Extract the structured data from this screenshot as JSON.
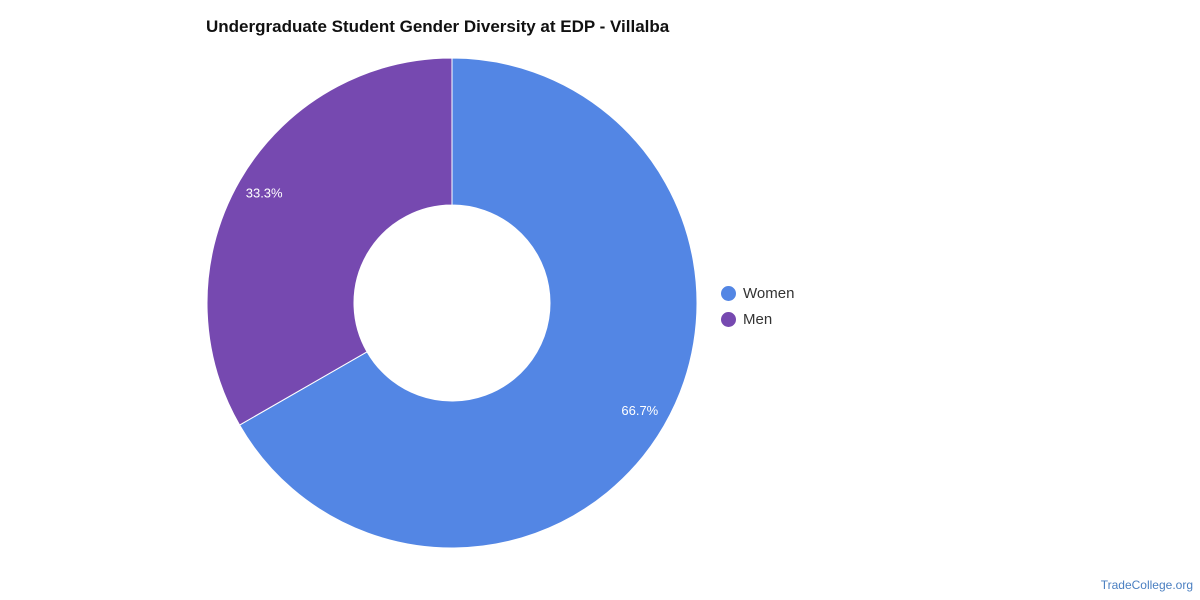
{
  "chart_data": {
    "type": "pie",
    "title": "Undergraduate Student Gender Diversity at EDP - Villalba",
    "categories": [
      "Women",
      "Men"
    ],
    "values": [
      66.7,
      33.3
    ],
    "labels": [
      "66.7%",
      "33.3%"
    ],
    "colors": [
      "#5386e4",
      "#7649b0"
    ],
    "legend_position": "right"
  },
  "credit": "TradeCollege.org"
}
